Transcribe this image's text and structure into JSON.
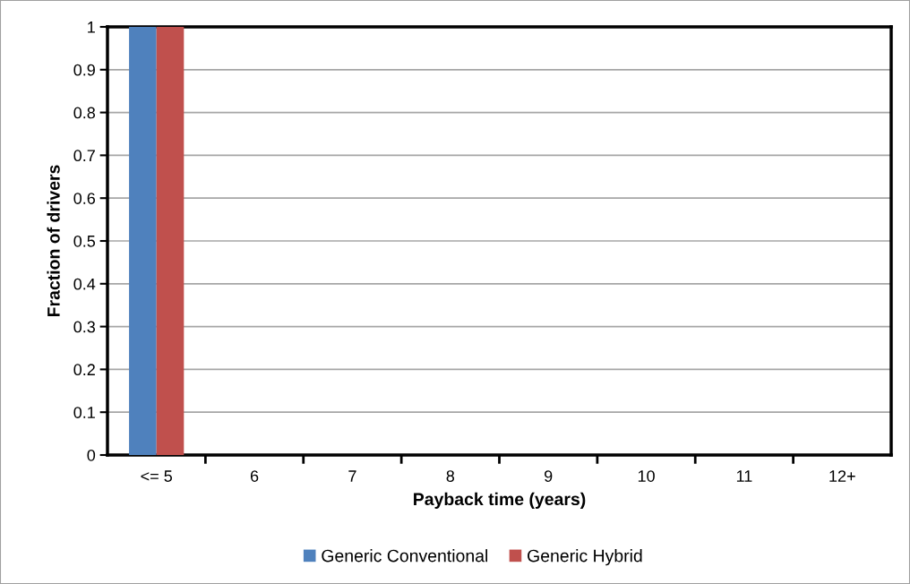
{
  "chart_data": {
    "type": "bar",
    "xlabel": "Payback time (years)",
    "ylabel": "Fraction of drivers",
    "categories": [
      "<= 5",
      "6",
      "7",
      "8",
      "9",
      "10",
      "11",
      "12+"
    ],
    "series": [
      {
        "name": "Generic Conventional",
        "color": "#4f81bd",
        "values": [
          1,
          0,
          0,
          0,
          0,
          0,
          0,
          0
        ]
      },
      {
        "name": "Generic Hybrid",
        "color": "#c0504d",
        "values": [
          1,
          0,
          0,
          0,
          0,
          0,
          0,
          0
        ]
      }
    ],
    "ylim": [
      0,
      1
    ],
    "yticks": [
      0,
      0.1,
      0.2,
      0.3,
      0.4,
      0.5,
      0.6,
      0.7,
      0.8,
      0.9,
      1
    ],
    "grid": "y",
    "legend": "bottom"
  }
}
